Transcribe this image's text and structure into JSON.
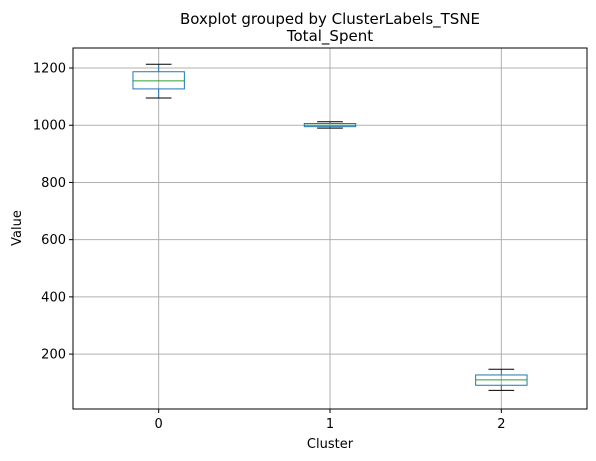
{
  "chart_data": {
    "type": "boxplot",
    "suptitle": "Boxplot grouped by ClusterLabels_TSNE",
    "title": "Total_Spent",
    "xlabel": "Cluster",
    "ylabel": "Value",
    "categories": [
      "0",
      "1",
      "2"
    ],
    "ylim": [
      8,
      1270
    ],
    "yticks": [
      200,
      400,
      600,
      800,
      1000,
      1200
    ],
    "grid": true,
    "boxes": [
      {
        "category": "0",
        "whisker_low": 1095,
        "q1": 1127,
        "median": 1155,
        "q3": 1187,
        "whisker_high": 1213
      },
      {
        "category": "1",
        "whisker_low": 990,
        "q1": 995,
        "median": 1000,
        "q3": 1006,
        "whisker_high": 1012
      },
      {
        "category": "2",
        "whisker_low": 73,
        "q1": 91,
        "median": 110,
        "q3": 127,
        "whisker_high": 147
      }
    ]
  },
  "colors": {
    "box": "#1f77b4",
    "median": "#2ca02c",
    "whisker": "#000000",
    "grid": "#b0b0b0"
  }
}
